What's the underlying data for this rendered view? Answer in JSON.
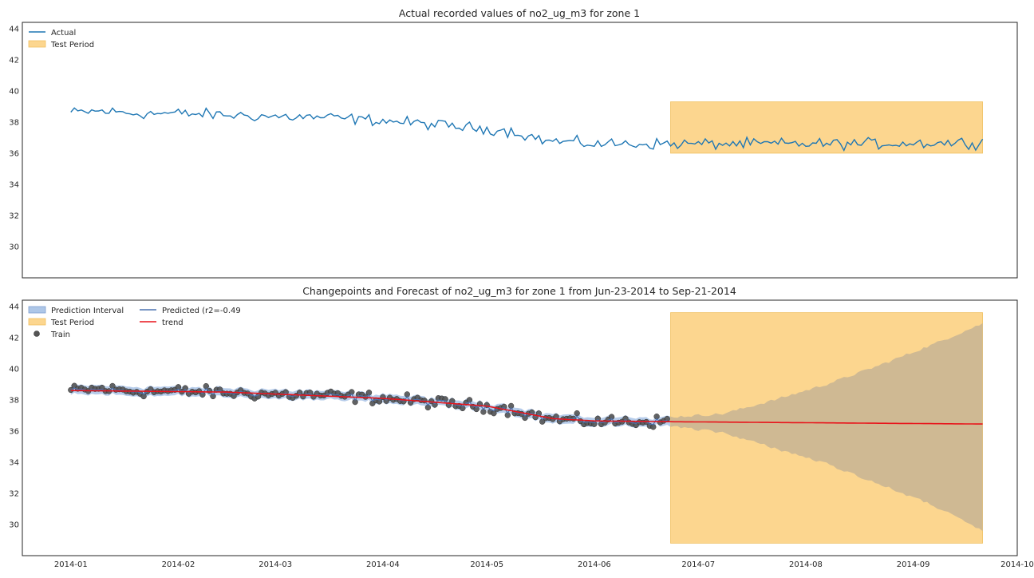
{
  "chart_data": [
    {
      "type": "line",
      "title": "Actual recorded values of no2_ug_m3 for zone 1",
      "xlabel": "",
      "ylabel": "",
      "ylim": [
        28,
        44.4
      ],
      "xlim": [
        "2013-12-18",
        "2014-10-01"
      ],
      "yticks": [
        30,
        32,
        34,
        36,
        38,
        40,
        42,
        44
      ],
      "grid": false,
      "legend": {
        "placement": "top-left",
        "entries": [
          "Actual",
          "Test Period"
        ]
      },
      "colors": {
        "actual": "#1f77b4",
        "test_period_fill": "#fcd68f",
        "test_period_edge": "#f0c060"
      },
      "series": [
        {
          "name": "Actual",
          "start_date": "2014-01-01",
          "end_date": "2014-09-21",
          "anchors": [
            [
              "2014-01-01",
              38.6
            ],
            [
              "2014-01-10",
              38.7
            ],
            [
              "2014-01-20",
              38.55
            ],
            [
              "2014-02-01",
              38.55
            ],
            [
              "2014-02-15",
              38.45
            ],
            [
              "2014-03-01",
              38.35
            ],
            [
              "2014-03-15",
              38.3
            ],
            [
              "2014-04-01",
              38.1
            ],
            [
              "2014-04-15",
              37.85
            ],
            [
              "2014-04-25",
              37.65
            ],
            [
              "2014-05-05",
              37.5
            ],
            [
              "2014-05-10",
              37.3
            ],
            [
              "2014-05-18",
              36.8
            ],
            [
              "2014-06-01",
              36.6
            ],
            [
              "2014-06-22",
              36.6
            ],
            [
              "2014-07-15",
              36.6
            ],
            [
              "2014-08-15",
              36.6
            ],
            [
              "2014-09-21",
              36.7
            ]
          ]
        }
      ],
      "test_period": {
        "start": "2014-06-23",
        "end": "2014-09-21",
        "ymin": 36.0,
        "ymax": 39.3
      }
    },
    {
      "type": "scatter",
      "title": "Changepoints and Forecast of no2_ug_m3 for zone 1 from Jun-23-2014 to Sep-21-2014",
      "xlabel": "",
      "ylabel": "",
      "ylim": [
        28,
        44.4
      ],
      "xlim": [
        "2013-12-18",
        "2014-10-01"
      ],
      "yticks": [
        30,
        32,
        34,
        36,
        38,
        40,
        42,
        44
      ],
      "xticks": [
        "2014-01",
        "2014-02",
        "2014-03",
        "2014-04",
        "2014-05",
        "2014-06",
        "2014-07",
        "2014-08",
        "2014-09",
        "2014-10"
      ],
      "grid": false,
      "legend": {
        "placement": "top-left",
        "entries": [
          "Prediction Interval",
          "Test Period",
          "Train",
          "Predicted (r2=-0.49",
          "trend"
        ]
      },
      "colors": {
        "prediction_interval": "#aec7e8",
        "test_period_fill": "#fcd68f",
        "overlap_fill": "#cfb993",
        "predicted": "#4c72b0",
        "trend": "#e8141b",
        "train": "#555555"
      },
      "series": [
        {
          "name": "Train",
          "start_date": "2014-01-01",
          "end_date": "2014-06-22"
        },
        {
          "name": "Predicted (r2=-0.49",
          "start_date": "2014-01-01",
          "end_date": "2014-06-22"
        },
        {
          "name": "trend",
          "points": [
            [
              "2014-01-01",
              38.6
            ],
            [
              "2014-02-15",
              38.5
            ],
            [
              "2014-04-01",
              38.1
            ],
            [
              "2014-05-01",
              37.6
            ],
            [
              "2014-05-20",
              36.8
            ],
            [
              "2014-06-01",
              36.65
            ],
            [
              "2014-06-22",
              36.6
            ],
            [
              "2014-09-21",
              36.45
            ]
          ]
        }
      ],
      "prediction_interval": {
        "in_sample_halfwidth": 0.3,
        "forecast": [
          [
            "2014-06-23",
            36.3,
            36.9
          ],
          [
            "2014-07-08",
            35.9,
            37.1
          ],
          [
            "2014-07-23",
            34.9,
            38.0
          ],
          [
            "2014-08-07",
            33.9,
            39.0
          ],
          [
            "2014-08-22",
            32.6,
            40.2
          ],
          [
            "2014-09-06",
            31.3,
            41.5
          ],
          [
            "2014-09-21",
            29.6,
            42.9
          ]
        ]
      },
      "test_period": {
        "start": "2014-06-23",
        "end": "2014-09-21",
        "ymin": 28.8,
        "ymax": 43.6
      }
    }
  ]
}
